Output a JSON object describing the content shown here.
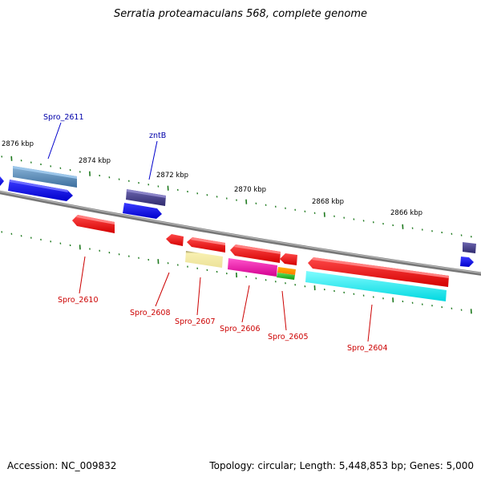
{
  "title": "Serratia proteamaculans 568, complete genome",
  "footer": {
    "accession": "Accession: NC_009832",
    "summary": "Topology: circular; Length: 5,448,853 bp; Genes: 5,000"
  },
  "ticks": [
    {
      "label": "2876 kbp"
    },
    {
      "label": "2874 kbp"
    },
    {
      "label": "2872 kbp"
    },
    {
      "label": "2870 kbp"
    },
    {
      "label": "2868 kbp"
    },
    {
      "label": "2866 kbp"
    }
  ],
  "genes": [
    {
      "label": "Spro_2611",
      "color": "#0000aa"
    },
    {
      "label": "zntB",
      "color": "#0000aa"
    },
    {
      "label": "Spro_2610",
      "color": "#cc0000"
    },
    {
      "label": "Spro_2608",
      "color": "#cc0000"
    },
    {
      "label": "Spro_2607",
      "color": "#cc0000"
    },
    {
      "label": "Spro_2606",
      "color": "#cc0000"
    },
    {
      "label": "Spro_2605",
      "color": "#cc0000"
    },
    {
      "label": "Spro_2604",
      "color": "#cc0000"
    }
  ]
}
